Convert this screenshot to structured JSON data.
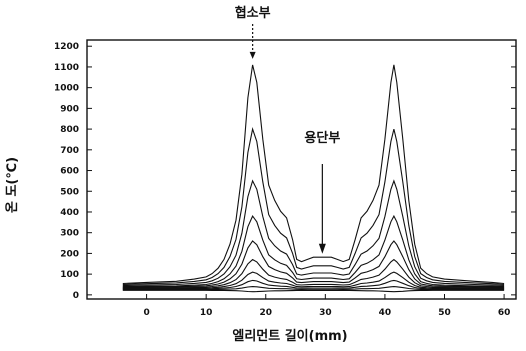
{
  "chart_data": {
    "type": "line",
    "xlabel": "엘리먼트 길이(mm)",
    "ylabel": "온 도(℃)",
    "xlim": [
      -10,
      62
    ],
    "ylim": [
      -20,
      1230
    ],
    "xticks": [
      0,
      10,
      20,
      30,
      40,
      50,
      60
    ],
    "yticks": [
      0,
      100,
      200,
      300,
      400,
      500,
      600,
      700,
      800,
      900,
      1000,
      1100,
      1200
    ],
    "annotations": [
      {
        "text": "협소부",
        "x": 17.8,
        "y": 1110
      },
      {
        "text": "용단부",
        "x": 29.5,
        "y": 160
      }
    ],
    "x": [
      -4,
      0,
      5,
      8,
      10,
      11,
      12,
      13,
      14,
      15,
      16,
      17,
      17.8,
      18.5,
      19.5,
      20.5,
      21.5,
      22.5,
      23.5,
      24.5,
      25.2,
      26,
      27,
      28,
      29,
      30,
      31,
      32,
      33,
      34,
      35,
      36,
      37,
      38,
      39,
      40,
      41,
      41.5,
      42,
      43,
      44,
      45,
      46,
      47,
      48,
      50,
      55,
      58,
      60
    ],
    "profile": [
      0,
      0.005,
      0.01,
      0.02,
      0.03,
      0.045,
      0.07,
      0.11,
      0.18,
      0.29,
      0.5,
      0.85,
      1.0,
      0.92,
      0.66,
      0.45,
      0.38,
      0.33,
      0.3,
      0.2,
      0.11,
      0.1,
      0.11,
      0.12,
      0.12,
      0.12,
      0.12,
      0.11,
      0.1,
      0.11,
      0.2,
      0.3,
      0.33,
      0.38,
      0.45,
      0.66,
      0.92,
      1.0,
      0.92,
      0.66,
      0.38,
      0.18,
      0.07,
      0.045,
      0.03,
      0.02,
      0.01,
      0.005,
      0
    ],
    "series": [
      {
        "base": 55,
        "peak": 1110
      },
      {
        "base": 50,
        "peak": 800
      },
      {
        "base": 45,
        "peak": 550
      },
      {
        "base": 40,
        "peak": 380
      },
      {
        "base": 37,
        "peak": 260
      },
      {
        "base": 34,
        "peak": 170
      },
      {
        "base": 31,
        "peak": 110
      },
      {
        "base": 28,
        "peak": 70
      },
      {
        "base": 25,
        "peak": 40
      },
      {
        "base": 22,
        "peak": 15
      }
    ]
  }
}
